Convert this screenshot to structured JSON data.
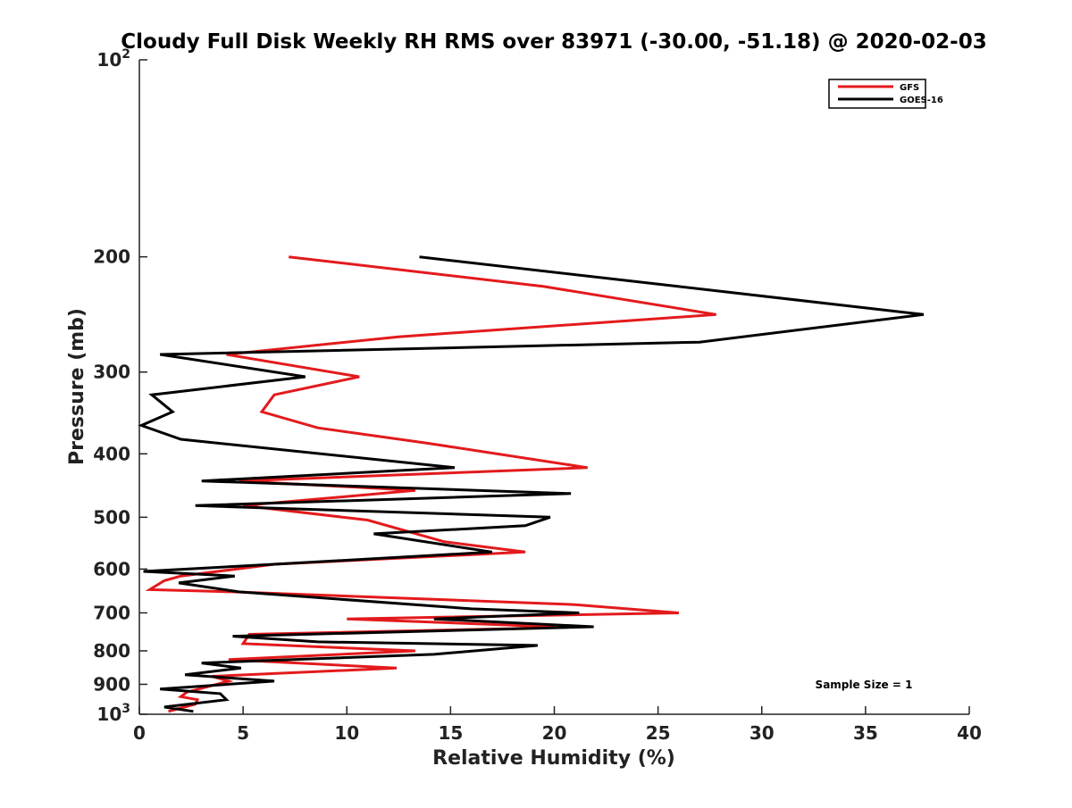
{
  "chart_data": {
    "type": "line",
    "title": "Cloudy Full Disk Weekly RH RMS over 83971 (-30.00, -51.18) @ 2020-02-03",
    "xlabel": "Relative Humidity (%)",
    "ylabel": "Pressure (mb)",
    "xlim": [
      0,
      40
    ],
    "ylim": [
      100,
      1000
    ],
    "y_scale": "log",
    "y_reversed": true,
    "x_ticks": [
      "0",
      "5",
      "10",
      "15",
      "20",
      "25",
      "30",
      "35",
      "40"
    ],
    "y_ticks": [
      {
        "value": 100,
        "base": "10",
        "exp": "2"
      },
      {
        "value": 200,
        "label": "200"
      },
      {
        "value": 300,
        "label": "300"
      },
      {
        "value": 400,
        "label": "400"
      },
      {
        "value": 500,
        "label": "500"
      },
      {
        "value": 600,
        "label": "600"
      },
      {
        "value": 700,
        "label": "700"
      },
      {
        "value": 800,
        "label": "800"
      },
      {
        "value": 900,
        "label": "900"
      },
      {
        "value": 1000,
        "base": "10",
        "exp": "3"
      }
    ],
    "grid": false,
    "legend_position": "top-right",
    "annotation": "Sample Size = 1",
    "series": [
      {
        "name": "GFS",
        "color": "#e31a1c",
        "x": [
          7.2,
          19.5,
          27.8,
          12.5,
          4.2,
          10.6,
          6.5,
          5.9,
          8.6,
          13.8,
          21.6,
          4.8,
          13.3,
          5.0,
          11.0,
          14.7,
          18.6,
          6.5,
          2.0,
          1.2,
          0.5,
          4.5,
          21.0,
          26.0,
          10.0,
          20.0,
          18.0,
          5.3,
          5.0,
          13.3,
          4.3,
          12.4,
          3.5,
          4.3,
          2.3,
          2.0,
          2.8,
          2.7,
          1.4
        ],
        "y": [
          200,
          222,
          245,
          265,
          282,
          305,
          325,
          345,
          365,
          385,
          420,
          440,
          455,
          480,
          505,
          545,
          565,
          590,
          615,
          625,
          645,
          650,
          680,
          700,
          715,
          735,
          740,
          755,
          780,
          800,
          825,
          850,
          875,
          890,
          925,
          940,
          950,
          965,
          990
        ]
      },
      {
        "name": "GOES-16",
        "color": "#000000",
        "x": [
          13.5,
          26.0,
          37.8,
          27.0,
          1.0,
          8.0,
          0.6,
          1.6,
          0.1,
          2.0,
          15.2,
          3.0,
          20.8,
          2.7,
          19.8,
          18.6,
          11.3,
          17.0,
          6.5,
          0.2,
          4.6,
          1.9,
          4.8,
          16.0,
          21.2,
          14.2,
          21.9,
          4.5,
          8.6,
          19.2,
          14.2,
          3.0,
          4.9,
          2.2,
          6.5,
          1.0,
          3.9,
          4.2,
          1.2,
          2.6
        ],
        "y": [
          200,
          222,
          245,
          270,
          282,
          305,
          325,
          345,
          362,
          380,
          420,
          440,
          460,
          480,
          500,
          515,
          530,
          565,
          590,
          605,
          615,
          630,
          650,
          690,
          700,
          715,
          735,
          760,
          775,
          785,
          810,
          835,
          850,
          870,
          890,
          915,
          930,
          950,
          975,
          990
        ]
      }
    ]
  }
}
